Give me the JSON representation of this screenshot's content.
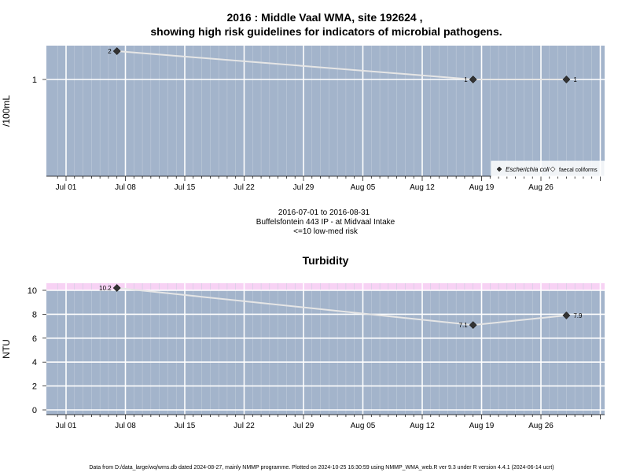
{
  "title_line1": "2016 : Middle Vaal WMA, site 192624 ,",
  "title_line2": "showing high risk guidelines for indicators of microbial pathogens.",
  "caption": {
    "line1": "2016-07-01 to 2016-08-31",
    "line2": "Buffelsfontein 443 IP - at Midvaal Intake",
    "line3": "<=10 low-med risk"
  },
  "footer": "Data from D:/data_large/wq/wms.db dated 2024-08-27, mainly NMMP programme. Plotted on 2024-10-25 16:30:59 using NMMP_WMA_web.R ver 9.3 under R version 4.4.1 (2024-06-14 ucrt)",
  "colors": {
    "panel_bg": "#a3b4cb",
    "grid_major": "#ffffff",
    "line": "#e6e6e6",
    "point": "#333333",
    "band": "#f7d2f4"
  },
  "chart_data": [
    {
      "type": "line",
      "title": "",
      "xlabel": "",
      "ylabel": "/100mL",
      "x_tick_labels": [
        "Jul 01",
        "Jul 08",
        "Jul 15",
        "Jul 22",
        "Jul 29",
        "Aug 05",
        "Aug 12",
        "Aug 19",
        "Aug 26"
      ],
      "y_ticks": [
        1
      ],
      "y_tick_labels": [
        "1"
      ],
      "y_scale": "log",
      "grid": true,
      "legend_position": "bottom-right",
      "legend": [
        {
          "label": "Escherichia coli",
          "marker": "filled-diamond"
        },
        {
          "label": "faecal coliforms",
          "marker": "open-diamond"
        }
      ],
      "series": [
        {
          "name": "Escherichia coli",
          "x": [
            "2016-07-07",
            "2016-08-18",
            "2016-08-29"
          ],
          "y": [
            2,
            1,
            1
          ],
          "labels": [
            "2",
            "1",
            "1"
          ]
        }
      ]
    },
    {
      "type": "line",
      "title": "Turbidity",
      "xlabel": "",
      "ylabel": "NTU",
      "x_tick_labels": [
        "Jul 01",
        "Jul 08",
        "Jul 15",
        "Jul 22",
        "Jul 29",
        "Aug 05",
        "Aug 12",
        "Aug 19",
        "Aug 26"
      ],
      "y_ticks": [
        0,
        2,
        4,
        6,
        8,
        10
      ],
      "y_tick_labels": [
        "0",
        "2",
        "4",
        "6",
        "8",
        "10"
      ],
      "ylim": [
        -0.4,
        10.6
      ],
      "grid": true,
      "band": [
        10,
        10.6
      ],
      "series": [
        {
          "x": [
            "2016-07-07",
            "2016-08-18",
            "2016-08-29"
          ],
          "y": [
            10.2,
            7.1,
            7.9
          ],
          "labels": [
            "10.2",
            "7.1",
            "7.9"
          ]
        }
      ]
    }
  ]
}
